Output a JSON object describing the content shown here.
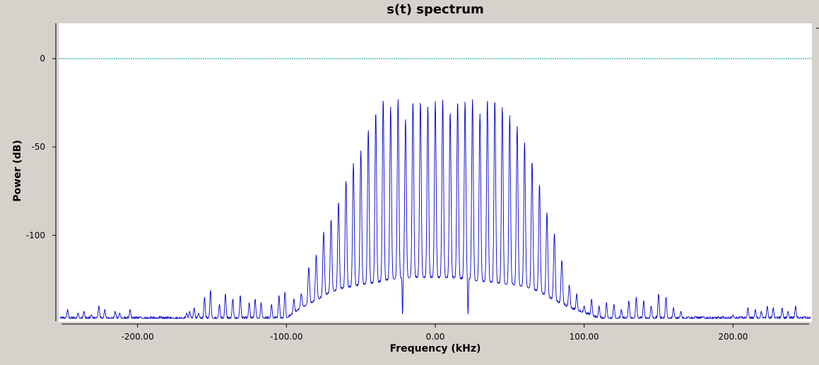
{
  "chart_data": {
    "type": "line",
    "title": "s(t) spectrum",
    "xlabel": "Frequency (kHz)",
    "ylabel": "Power (dB)",
    "xlim": [
      -253,
      253
    ],
    "ylim": [
      -149,
      20
    ],
    "x_ticks": [
      -200,
      -100,
      0,
      100,
      200
    ],
    "x_tick_labels": [
      "-200.00",
      "-100.00",
      "0.00",
      "100.00",
      "200.00"
    ],
    "y_ticks": [
      0,
      -50,
      -100
    ],
    "y_tick_labels": [
      "0",
      "-50",
      "-100"
    ],
    "reference_level": 0,
    "grid": false,
    "series": [
      {
        "color": "#0000cc",
        "harmonic_spacing_khz": 5,
        "noise_floor_db": -148,
        "peaks": [
          [
            -247,
            -142
          ],
          [
            -240,
            -144
          ],
          [
            -236,
            -143
          ],
          [
            -231,
            -145
          ],
          [
            -226,
            -140
          ],
          [
            -222,
            -142
          ],
          [
            -215,
            -143
          ],
          [
            -212,
            -144
          ],
          [
            -205,
            -142
          ],
          [
            -198,
            -146
          ],
          [
            -192,
            -147
          ],
          [
            -186,
            -148
          ],
          [
            -176,
            -148
          ],
          [
            -170,
            -147
          ],
          [
            -167,
            -144
          ],
          [
            -165,
            -143
          ],
          [
            -162,
            -141
          ],
          [
            -159,
            -144
          ],
          [
            -155,
            -135
          ],
          [
            -151,
            -131
          ],
          [
            -145,
            -139
          ],
          [
            -141,
            -133
          ],
          [
            -136,
            -136
          ],
          [
            -131,
            -134
          ],
          [
            -125,
            -138
          ],
          [
            -121,
            -136
          ],
          [
            -117,
            -138
          ],
          [
            -110,
            -139
          ],
          [
            -105,
            -134
          ],
          [
            -101,
            -132
          ],
          [
            -95,
            -136
          ],
          [
            -90,
            -133
          ],
          [
            -85,
            -118
          ],
          [
            -80,
            -111
          ],
          [
            -75,
            -98
          ],
          [
            -70,
            -91
          ],
          [
            -65,
            -81
          ],
          [
            -60,
            -69
          ],
          [
            -55,
            -59
          ],
          [
            -50,
            -52
          ],
          [
            -45,
            -40
          ],
          [
            -40,
            -30
          ],
          [
            -35,
            -23
          ],
          [
            -30,
            -27
          ],
          [
            -25,
            -23
          ],
          [
            -20,
            -34
          ],
          [
            -15,
            -24
          ],
          [
            -10,
            -24
          ],
          [
            -5,
            -27
          ],
          [
            0,
            -24
          ],
          [
            5,
            -23
          ],
          [
            10,
            -30
          ],
          [
            15,
            -24
          ],
          [
            20,
            -24
          ],
          [
            25,
            -23
          ],
          [
            30,
            -31
          ],
          [
            35,
            -23
          ],
          [
            40,
            -23
          ],
          [
            45,
            -27
          ],
          [
            50,
            -32
          ],
          [
            55,
            -38
          ],
          [
            60,
            -47
          ],
          [
            65,
            -58
          ],
          [
            70,
            -71
          ],
          [
            75,
            -87
          ],
          [
            80,
            -99
          ],
          [
            85,
            -114
          ],
          [
            90,
            -128
          ],
          [
            95,
            -133
          ],
          [
            100,
            -140
          ],
          [
            105,
            -136
          ],
          [
            110,
            -140
          ],
          [
            115,
            -138
          ],
          [
            120,
            -139
          ],
          [
            125,
            -142
          ],
          [
            130,
            -137
          ],
          [
            135,
            -135
          ],
          [
            140,
            -137
          ],
          [
            145,
            -140
          ],
          [
            150,
            -133
          ],
          [
            155,
            -135
          ],
          [
            160,
            -141
          ],
          [
            165,
            -143
          ],
          [
            170,
            -146
          ],
          [
            175,
            -146
          ],
          [
            180,
            -146
          ],
          [
            185,
            -148
          ],
          [
            195,
            -147
          ],
          [
            200,
            -145
          ],
          [
            205,
            -146
          ],
          [
            210,
            -141
          ],
          [
            215,
            -142
          ],
          [
            219,
            -143
          ],
          [
            223,
            -140
          ],
          [
            227,
            -141
          ],
          [
            233,
            -141
          ],
          [
            237,
            -143
          ],
          [
            242,
            -140
          ],
          [
            248,
            -146
          ]
        ],
        "envelope_floor": [
          [
            -253,
            -147
          ],
          [
            -100,
            -147
          ],
          [
            -95,
            -144
          ],
          [
            -90,
            -141
          ],
          [
            -80,
            -137
          ],
          [
            -70,
            -132
          ],
          [
            -60,
            -130
          ],
          [
            -50,
            -128
          ],
          [
            -40,
            -127
          ],
          [
            -30,
            -125
          ],
          [
            -20,
            -124
          ],
          [
            -10,
            -124
          ],
          [
            0,
            -124
          ],
          [
            10,
            -124
          ],
          [
            20,
            -125
          ],
          [
            30,
            -126
          ],
          [
            40,
            -127
          ],
          [
            50,
            -128
          ],
          [
            60,
            -129
          ],
          [
            70,
            -132
          ],
          [
            80,
            -137
          ],
          [
            90,
            -141
          ],
          [
            100,
            -144
          ],
          [
            110,
            -147
          ],
          [
            253,
            -147
          ]
        ],
        "deep_nulls": [
          [
            -22,
            -145
          ],
          [
            22,
            -145
          ]
        ]
      }
    ]
  }
}
